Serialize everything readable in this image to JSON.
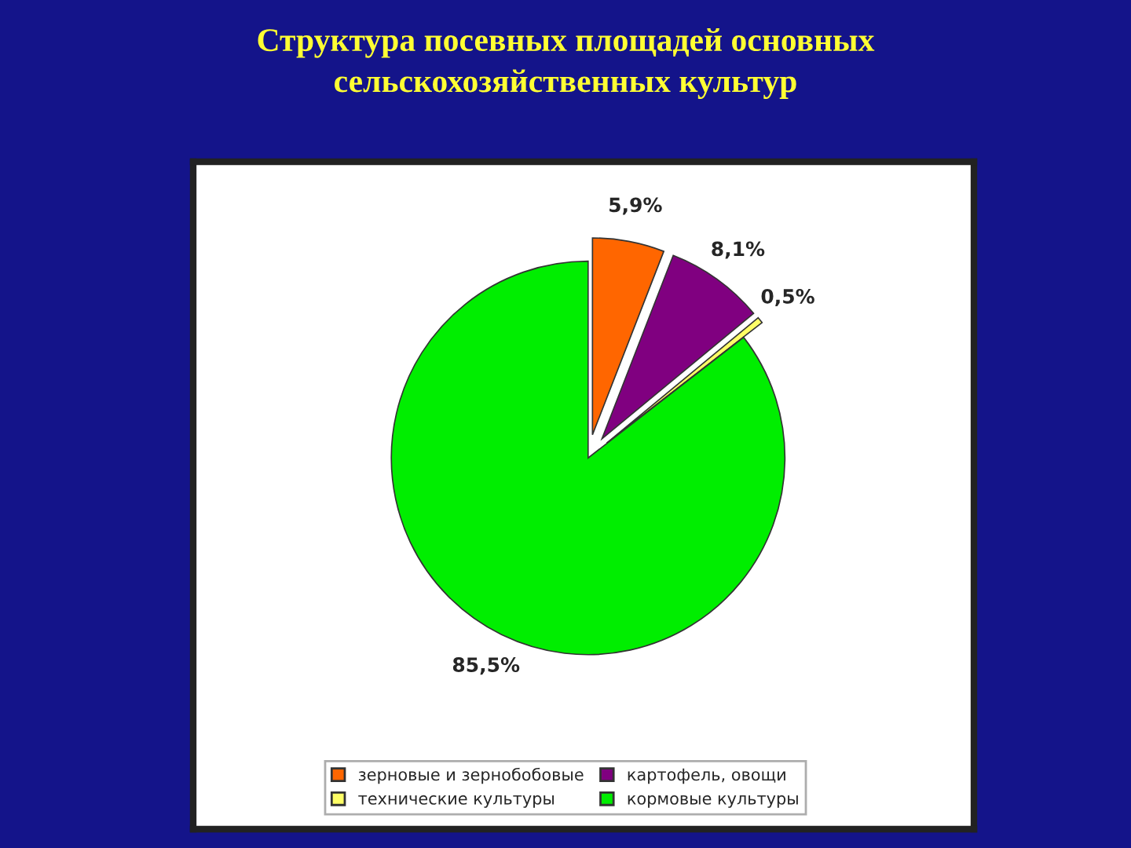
{
  "chart_data": {
    "type": "pie",
    "title": "Структура посевных площадей основных\nсельскохозяйственных культур",
    "categories": [
      "зерновые и зернобобовые",
      "картофель, овощи",
      "технические культуры",
      "кормовые культуры"
    ],
    "values": [
      5.9,
      8.1,
      0.5,
      85.5
    ],
    "value_labels": [
      "5,9%",
      "8,1%",
      "0,5%",
      "85,5%"
    ],
    "colors": [
      "#ff6600",
      "#800080",
      "#ffff66",
      "#00ee00"
    ],
    "legend": "bottom"
  }
}
